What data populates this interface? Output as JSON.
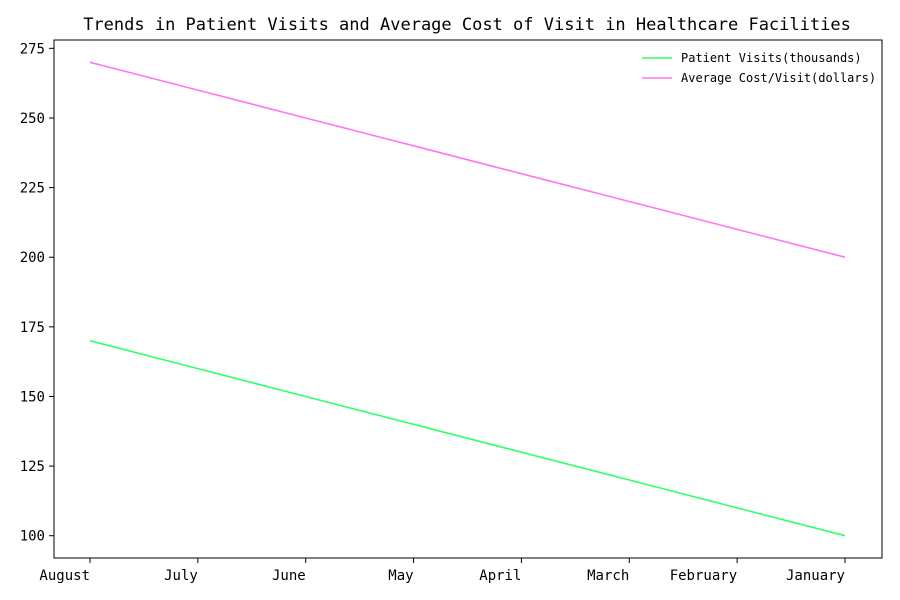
{
  "chart_data": {
    "type": "line",
    "title": "Trends in Patient Visits and Average Cost of Visit in Healthcare Facilities",
    "xlabel": "",
    "ylabel": "",
    "categories": [
      "August",
      "July",
      "June",
      "May",
      "April",
      "March",
      "February",
      "January"
    ],
    "ylim": [
      92,
      278
    ],
    "yticks": [
      100,
      125,
      150,
      175,
      200,
      225,
      250,
      275
    ],
    "grid": false,
    "legend_position": "top-right",
    "series": [
      {
        "name": "Patient Visits(thousands)",
        "color": "#33ff66",
        "values": [
          170,
          160,
          150,
          140,
          130,
          120,
          110,
          100
        ]
      },
      {
        "name": "Average Cost/Visit(dollars)",
        "color": "#ff77ee",
        "values": [
          270,
          260,
          250,
          240,
          230,
          220,
          210,
          200
        ]
      }
    ]
  }
}
